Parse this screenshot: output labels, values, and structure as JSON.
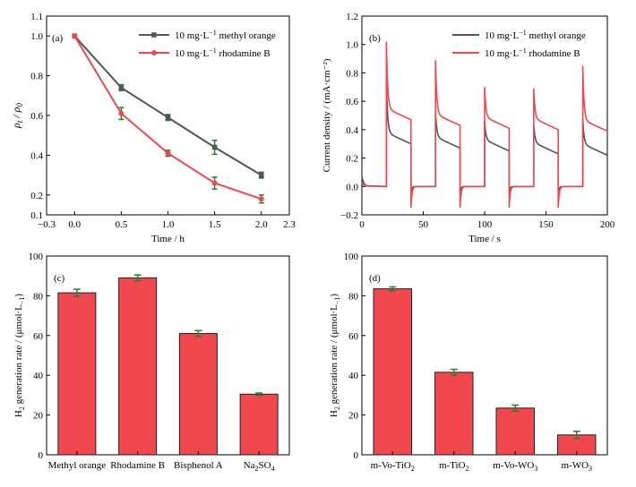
{
  "colors": {
    "gray_series": "#555555",
    "red_series": "#f0484e",
    "bar_fill": "#f0484e",
    "bar_edge": "#222222",
    "error_bar": "#2e7d32"
  },
  "chart_data": [
    {
      "panel": "(a)",
      "type": "line",
      "xlabel": "Time / h",
      "ylabel": "ρ_t / ρ_0",
      "xlim": [
        -0.3,
        2.3
      ],
      "ylim": [
        0.1,
        1.1
      ],
      "x_ticks": [
        -0.3,
        0.0,
        0.5,
        1.0,
        1.5,
        2.0,
        2.3
      ],
      "x_tick_labels": [
        "−0.3",
        "0.0",
        "0.5",
        "1.0",
        "1.5",
        "2.0",
        "2.3"
      ],
      "y_ticks": [
        0.1,
        0.2,
        0.4,
        0.6,
        0.8,
        1.0,
        1.1
      ],
      "y_tick_labels": [
        "0.1",
        "0.2",
        "0.4",
        "0.6",
        "0.8",
        "1.0",
        "1.1"
      ],
      "legend_position": "top-right",
      "x": [
        0.0,
        0.5,
        1.0,
        1.5,
        2.0
      ],
      "series": [
        {
          "name_parts": [
            "10 mg·L",
            "−1",
            " methyl orange"
          ],
          "color": "#555555",
          "marker": "square",
          "values": [
            1.0,
            0.74,
            0.59,
            0.44,
            0.3
          ],
          "errors": [
            0.0,
            0.015,
            0.015,
            0.035,
            0.015
          ]
        },
        {
          "name_parts": [
            "10 mg·L",
            "−1",
            " rhodamine B"
          ],
          "color": "#f0484e",
          "marker": "circle",
          "values": [
            1.0,
            0.61,
            0.41,
            0.26,
            0.18
          ],
          "errors": [
            0.0,
            0.03,
            0.015,
            0.03,
            0.02
          ]
        }
      ]
    },
    {
      "panel": "(b)",
      "type": "line",
      "xlabel": "Time / s",
      "ylabel": "Current density / (mA·cm⁻²)",
      "xlim": [
        0,
        200
      ],
      "ylim": [
        -0.2,
        1.2
      ],
      "x_ticks": [
        0,
        50,
        100,
        150,
        200
      ],
      "y_ticks": [
        -0.2,
        0.0,
        0.2,
        0.4,
        0.6,
        0.8,
        1.0,
        1.2
      ],
      "y_tick_labels": [
        "−0.2",
        "0.0",
        "0.2",
        "0.4",
        "0.6",
        "0.8",
        "1.0",
        "1.2"
      ],
      "legend_position": "top-right",
      "light_on_times": [
        20,
        60,
        100,
        140,
        180
      ],
      "light_off_times": [
        40,
        80,
        120,
        160
      ],
      "series": [
        {
          "name_parts": [
            "10 mg·L",
            "−1",
            " methyl orange"
          ],
          "color": "#555555",
          "spike_peaks": [
            0.73,
            0.53,
            0.46,
            0.44,
            0.48
          ],
          "plateau_end": [
            0.3,
            0.27,
            0.25,
            0.23,
            0.22
          ],
          "off_dip": -0.04
        },
        {
          "name_parts": [
            "10 mg·L",
            "−1",
            " rhodamine B"
          ],
          "color": "#f0484e",
          "spike_peaks": [
            1.02,
            0.89,
            0.7,
            0.69,
            0.85
          ],
          "plateau_end": [
            0.47,
            0.43,
            0.41,
            0.4,
            0.39
          ],
          "off_dip": -0.15
        }
      ]
    },
    {
      "panel": "(c)",
      "type": "bar",
      "ylabel_parts": [
        "H",
        "2",
        " generation rate / (μmol·L",
        "−1",
        ")"
      ],
      "ylim": [
        0,
        100
      ],
      "y_ticks": [
        0,
        20,
        40,
        60,
        80,
        100
      ],
      "categories": [
        {
          "parts": [
            "Methyl orange"
          ]
        },
        {
          "parts": [
            "Rhodamine B"
          ]
        },
        {
          "parts": [
            "Bisphenol A"
          ]
        },
        {
          "parts": [
            "Na",
            "2",
            "SO",
            "4"
          ]
        }
      ],
      "values": [
        81.5,
        89.0,
        61.0,
        30.5
      ],
      "errors": [
        1.8,
        1.5,
        1.5,
        0.6
      ]
    },
    {
      "panel": "(d)",
      "type": "bar",
      "ylabel_parts": [
        "H",
        "2",
        " generation rate / (μmol·L",
        "−1",
        ")"
      ],
      "ylim": [
        0,
        100
      ],
      "y_ticks": [
        0,
        20,
        40,
        60,
        80,
        100
      ],
      "categories": [
        {
          "parts": [
            "m-Vo-TiO",
            "2"
          ]
        },
        {
          "parts": [
            "m-TiO",
            "2"
          ]
        },
        {
          "parts": [
            "m-Vo-WO",
            "3"
          ]
        },
        {
          "parts": [
            "m-WO",
            "3"
          ]
        }
      ],
      "values": [
        83.5,
        41.5,
        23.5,
        10.0
      ],
      "errors": [
        1.0,
        1.5,
        1.5,
        1.8
      ]
    }
  ]
}
